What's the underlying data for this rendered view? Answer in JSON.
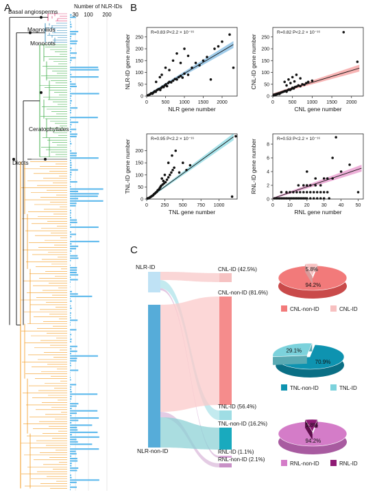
{
  "panels": {
    "a": "A",
    "b": "B",
    "c": "C"
  },
  "colors": {
    "basal": "#e0457b",
    "magnoliids": "#3a8fbf",
    "monocots": "#3fae49",
    "ceratophyllales": "#444444",
    "dicots": "#f39a1e",
    "bars": "#5bb8ec",
    "nlr_scatter": "#2f8fd0",
    "cnl": "#ef5a5a",
    "tnl": "#3bbfcf",
    "rnl": "#d94faa",
    "pie_cnl_non": "#f27a7a",
    "pie_cnl_id": "#f7c0c0",
    "pie_tnl_non": "#0e93b0",
    "pie_tnl_id": "#7cd2dc",
    "pie_rnl_non": "#d47cc8",
    "pie_rnl_id": "#8e1a74"
  },
  "tree": {
    "clades": [
      "Basal angiosperms",
      "Magnoliids",
      "Monocots",
      "Ceratophyllales",
      "Dicots"
    ],
    "bar_axis_title": "Number of NLR-IDs",
    "bar_ticks": [
      "30",
      "100",
      "200"
    ]
  },
  "chart_data": [
    {
      "type": "scatter",
      "id": "nlr",
      "title": "R=0.83 P<2.2 × 10⁻¹⁶",
      "xlabel": "NLR gene number",
      "ylabel": "NLR-ID gene number",
      "xlim": [
        0,
        2400
      ],
      "ylim": [
        0,
        290
      ],
      "xticks": [
        0,
        500,
        1000,
        1500,
        2000
      ],
      "yticks": [
        0,
        50,
        100,
        150,
        200,
        250
      ],
      "fit": [
        [
          0,
          2
        ],
        [
          2300,
          218
        ]
      ],
      "points": [
        [
          30,
          3
        ],
        [
          60,
          5
        ],
        [
          90,
          8
        ],
        [
          120,
          12
        ],
        [
          150,
          10
        ],
        [
          180,
          15
        ],
        [
          210,
          20
        ],
        [
          240,
          18
        ],
        [
          270,
          25
        ],
        [
          300,
          28
        ],
        [
          330,
          30
        ],
        [
          360,
          26
        ],
        [
          390,
          35
        ],
        [
          420,
          40
        ],
        [
          450,
          38
        ],
        [
          480,
          45
        ],
        [
          510,
          50
        ],
        [
          540,
          42
        ],
        [
          570,
          55
        ],
        [
          600,
          60
        ],
        [
          650,
          58
        ],
        [
          700,
          65
        ],
        [
          750,
          72
        ],
        [
          800,
          70
        ],
        [
          850,
          80
        ],
        [
          900,
          85
        ],
        [
          950,
          78
        ],
        [
          1000,
          95
        ],
        [
          1100,
          90
        ],
        [
          1200,
          120
        ],
        [
          1300,
          140
        ],
        [
          1400,
          130
        ],
        [
          1500,
          150
        ],
        [
          1600,
          165
        ],
        [
          1700,
          70
        ],
        [
          1800,
          200
        ],
        [
          1900,
          210
        ],
        [
          2000,
          230
        ],
        [
          2200,
          260
        ],
        [
          2300,
          120
        ],
        [
          700,
          150
        ],
        [
          900,
          140
        ],
        [
          500,
          120
        ],
        [
          400,
          90
        ],
        [
          600,
          110
        ],
        [
          350,
          80
        ],
        [
          250,
          60
        ],
        [
          800,
          180
        ],
        [
          1000,
          200
        ],
        [
          1100,
          170
        ]
      ]
    },
    {
      "type": "scatter",
      "id": "cnl",
      "title": "R=0.82 P<2.2 × 10⁻¹⁶",
      "xlabel": "CNL gene number",
      "ylabel": "CNL-ID gene number",
      "xlim": [
        0,
        2300
      ],
      "ylim": [
        0,
        290
      ],
      "xticks": [
        0,
        500,
        1000,
        1500,
        2000
      ],
      "yticks": [
        0,
        50,
        100,
        150,
        200,
        250
      ],
      "fit": [
        [
          0,
          8
        ],
        [
          2200,
          118
        ]
      ],
      "points": [
        [
          20,
          2
        ],
        [
          50,
          4
        ],
        [
          80,
          6
        ],
        [
          110,
          8
        ],
        [
          140,
          10
        ],
        [
          170,
          9
        ],
        [
          200,
          14
        ],
        [
          230,
          16
        ],
        [
          260,
          18
        ],
        [
          290,
          20
        ],
        [
          320,
          22
        ],
        [
          350,
          19
        ],
        [
          380,
          25
        ],
        [
          410,
          28
        ],
        [
          440,
          26
        ],
        [
          470,
          30
        ],
        [
          500,
          35
        ],
        [
          530,
          32
        ],
        [
          560,
          38
        ],
        [
          600,
          40
        ],
        [
          650,
          45
        ],
        [
          700,
          42
        ],
        [
          750,
          50
        ],
        [
          800,
          48
        ],
        [
          850,
          55
        ],
        [
          300,
          60
        ],
        [
          400,
          70
        ],
        [
          500,
          80
        ],
        [
          600,
          90
        ],
        [
          700,
          75
        ],
        [
          1800,
          270
        ],
        [
          2150,
          145
        ],
        [
          900,
          60
        ],
        [
          1000,
          65
        ],
        [
          350,
          45
        ],
        [
          450,
          55
        ],
        [
          550,
          62
        ]
      ]
    },
    {
      "type": "scatter",
      "id": "tnl",
      "title": "R=0.95 P<2.2 × 10⁻¹⁶",
      "xlabel": "TNL gene number",
      "ylabel": "TNL-ID gene number",
      "xlim": [
        0,
        1250
      ],
      "ylim": [
        0,
        270
      ],
      "xticks": [
        0,
        250,
        500,
        750,
        1000
      ],
      "yticks": [
        0,
        50,
        100,
        150,
        200
      ],
      "fit": [
        [
          0,
          -3
        ],
        [
          1200,
          258
        ]
      ],
      "points": [
        [
          10,
          1
        ],
        [
          20,
          2
        ],
        [
          30,
          4
        ],
        [
          40,
          6
        ],
        [
          50,
          8
        ],
        [
          60,
          10
        ],
        [
          70,
          12
        ],
        [
          80,
          14
        ],
        [
          90,
          16
        ],
        [
          100,
          20
        ],
        [
          110,
          22
        ],
        [
          120,
          25
        ],
        [
          130,
          28
        ],
        [
          140,
          30
        ],
        [
          150,
          35
        ],
        [
          160,
          38
        ],
        [
          170,
          40
        ],
        [
          180,
          45
        ],
        [
          190,
          50
        ],
        [
          200,
          55
        ],
        [
          220,
          60
        ],
        [
          240,
          65
        ],
        [
          260,
          70
        ],
        [
          280,
          80
        ],
        [
          300,
          90
        ],
        [
          320,
          100
        ],
        [
          340,
          110
        ],
        [
          360,
          120
        ],
        [
          380,
          130
        ],
        [
          400,
          200
        ],
        [
          450,
          110
        ],
        [
          500,
          150
        ],
        [
          550,
          120
        ],
        [
          600,
          140
        ],
        [
          350,
          180
        ],
        [
          300,
          150
        ],
        [
          250,
          100
        ],
        [
          1180,
          10
        ],
        [
          1230,
          260
        ],
        [
          210,
          85
        ],
        [
          230,
          75
        ]
      ]
    },
    {
      "type": "scatter",
      "id": "rnl",
      "title": "R=0.53 P<2.2 × 10⁻¹⁶",
      "xlabel": "RNL gene number",
      "ylabel": "RNL-ID gene number",
      "xlim": [
        0,
        53
      ],
      "ylim": [
        0,
        9.5
      ],
      "xticks": [
        0,
        10,
        20,
        30,
        40,
        50
      ],
      "yticks": [
        0,
        2,
        4,
        6,
        8
      ],
      "fit": [
        [
          0,
          0.1
        ],
        [
          52,
          4.5
        ]
      ],
      "points": [
        [
          1,
          0
        ],
        [
          2,
          0
        ],
        [
          3,
          0
        ],
        [
          4,
          0
        ],
        [
          5,
          0
        ],
        [
          6,
          0
        ],
        [
          7,
          0
        ],
        [
          8,
          0
        ],
        [
          9,
          0
        ],
        [
          10,
          0
        ],
        [
          11,
          0
        ],
        [
          12,
          0
        ],
        [
          13,
          0
        ],
        [
          14,
          0
        ],
        [
          15,
          0
        ],
        [
          16,
          0
        ],
        [
          17,
          0
        ],
        [
          18,
          0
        ],
        [
          19,
          0
        ],
        [
          20,
          0
        ],
        [
          22,
          0
        ],
        [
          24,
          0
        ],
        [
          26,
          0
        ],
        [
          28,
          0
        ],
        [
          30,
          0
        ],
        [
          33,
          0
        ],
        [
          5,
          1
        ],
        [
          8,
          1
        ],
        [
          10,
          1
        ],
        [
          12,
          1
        ],
        [
          14,
          1
        ],
        [
          16,
          1
        ],
        [
          18,
          1
        ],
        [
          20,
          1
        ],
        [
          22,
          1
        ],
        [
          24,
          1
        ],
        [
          26,
          1
        ],
        [
          28,
          1
        ],
        [
          30,
          1
        ],
        [
          32,
          1
        ],
        [
          15,
          2
        ],
        [
          18,
          2
        ],
        [
          20,
          2
        ],
        [
          22,
          2
        ],
        [
          25,
          2
        ],
        [
          28,
          2
        ],
        [
          30,
          3
        ],
        [
          32,
          3
        ],
        [
          35,
          3
        ],
        [
          40,
          4
        ],
        [
          45,
          5
        ],
        [
          50,
          1
        ],
        [
          35,
          6
        ],
        [
          37,
          9
        ],
        [
          20,
          4
        ],
        [
          25,
          3
        ]
      ]
    },
    {
      "type": "sankey",
      "id": "sankey",
      "left_nodes": [
        {
          "label": "NLR-ID",
          "value": 8.5
        },
        {
          "label": "NLR-non-ID",
          "value": 91.5
        }
      ],
      "right_nodes": [
        {
          "label": "CNL-ID",
          "pct": "(42.5%)"
        },
        {
          "label": "CNL-non-ID",
          "pct": "(81.6%)"
        },
        {
          "label": "TNL-ID",
          "pct": "(56.4%)"
        },
        {
          "label": "TNL-non-ID",
          "pct": "(16.2%)"
        },
        {
          "label": "RNL-ID",
          "pct": "(1.1%)"
        },
        {
          "label": "RNL-non-ID",
          "pct": "(2.1%)"
        }
      ]
    },
    {
      "type": "pie",
      "id": "pie_cnl",
      "slices": [
        {
          "label": "CNL-non-ID",
          "value": 94.2,
          "text": "94.2%"
        },
        {
          "label": "CNL-ID",
          "value": 5.8,
          "text": "5.8%"
        }
      ]
    },
    {
      "type": "pie",
      "id": "pie_tnl",
      "slices": [
        {
          "label": "TNL-non-ID",
          "value": 70.9,
          "text": "70.9%"
        },
        {
          "label": "TNL-ID",
          "value": 29.1,
          "text": "29.1%"
        }
      ]
    },
    {
      "type": "pie",
      "id": "pie_rnl",
      "slices": [
        {
          "label": "RNL-non-ID",
          "value": 94.2,
          "text": "94.2%"
        },
        {
          "label": "RNL-ID",
          "value": 5.8,
          "text": "5.8%"
        }
      ]
    }
  ]
}
